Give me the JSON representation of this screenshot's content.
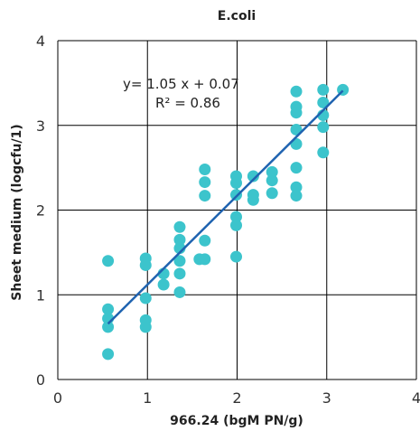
{
  "chart_data": {
    "type": "scatter",
    "title": "E.coli",
    "xlabel": "966.24 (bgM PN/g)",
    "ylabel": "Sheet medium (logcfu/1)",
    "xlim": [
      0,
      4
    ],
    "ylim": [
      0,
      4
    ],
    "xticks": [
      "0",
      "1",
      "2",
      "3",
      "4"
    ],
    "yticks": [
      "0",
      "1",
      "2",
      "3",
      "4"
    ],
    "grid": true,
    "colors": {
      "points": "#3cc4cc",
      "trendline": "#1f63b0"
    },
    "annotation": {
      "equation": "y= 1.05 x + 0.07",
      "r2": "R² = 0.86"
    },
    "trendline": {
      "slope": 1.05,
      "intercept": 0.07,
      "x_range": [
        0.56,
        3.18
      ]
    },
    "points": [
      [
        0.56,
        1.4
      ],
      [
        0.56,
        0.83
      ],
      [
        0.56,
        0.72
      ],
      [
        0.56,
        0.62
      ],
      [
        0.56,
        0.3
      ],
      [
        0.98,
        1.43
      ],
      [
        0.98,
        1.35
      ],
      [
        0.98,
        0.96
      ],
      [
        0.98,
        0.7
      ],
      [
        0.98,
        0.62
      ],
      [
        1.18,
        1.25
      ],
      [
        1.18,
        1.12
      ],
      [
        1.36,
        1.8
      ],
      [
        1.36,
        1.65
      ],
      [
        1.36,
        1.55
      ],
      [
        1.36,
        1.4
      ],
      [
        1.36,
        1.25
      ],
      [
        1.36,
        1.03
      ],
      [
        1.58,
        1.42
      ],
      [
        1.64,
        2.48
      ],
      [
        1.64,
        2.33
      ],
      [
        1.64,
        2.17
      ],
      [
        1.64,
        1.64
      ],
      [
        1.64,
        1.42
      ],
      [
        1.99,
        2.4
      ],
      [
        1.99,
        2.32
      ],
      [
        1.99,
        2.18
      ],
      [
        1.99,
        1.92
      ],
      [
        1.99,
        1.82
      ],
      [
        1.99,
        1.45
      ],
      [
        2.18,
        2.4
      ],
      [
        2.18,
        2.18
      ],
      [
        2.18,
        2.12
      ],
      [
        2.39,
        2.45
      ],
      [
        2.39,
        2.35
      ],
      [
        2.39,
        2.2
      ],
      [
        2.66,
        3.4
      ],
      [
        2.66,
        3.22
      ],
      [
        2.66,
        3.15
      ],
      [
        2.66,
        2.95
      ],
      [
        2.66,
        2.78
      ],
      [
        2.66,
        2.5
      ],
      [
        2.66,
        2.27
      ],
      [
        2.66,
        2.17
      ],
      [
        2.96,
        3.42
      ],
      [
        2.96,
        3.27
      ],
      [
        2.96,
        3.12
      ],
      [
        2.96,
        2.98
      ],
      [
        2.96,
        2.68
      ],
      [
        3.18,
        3.42
      ]
    ]
  }
}
